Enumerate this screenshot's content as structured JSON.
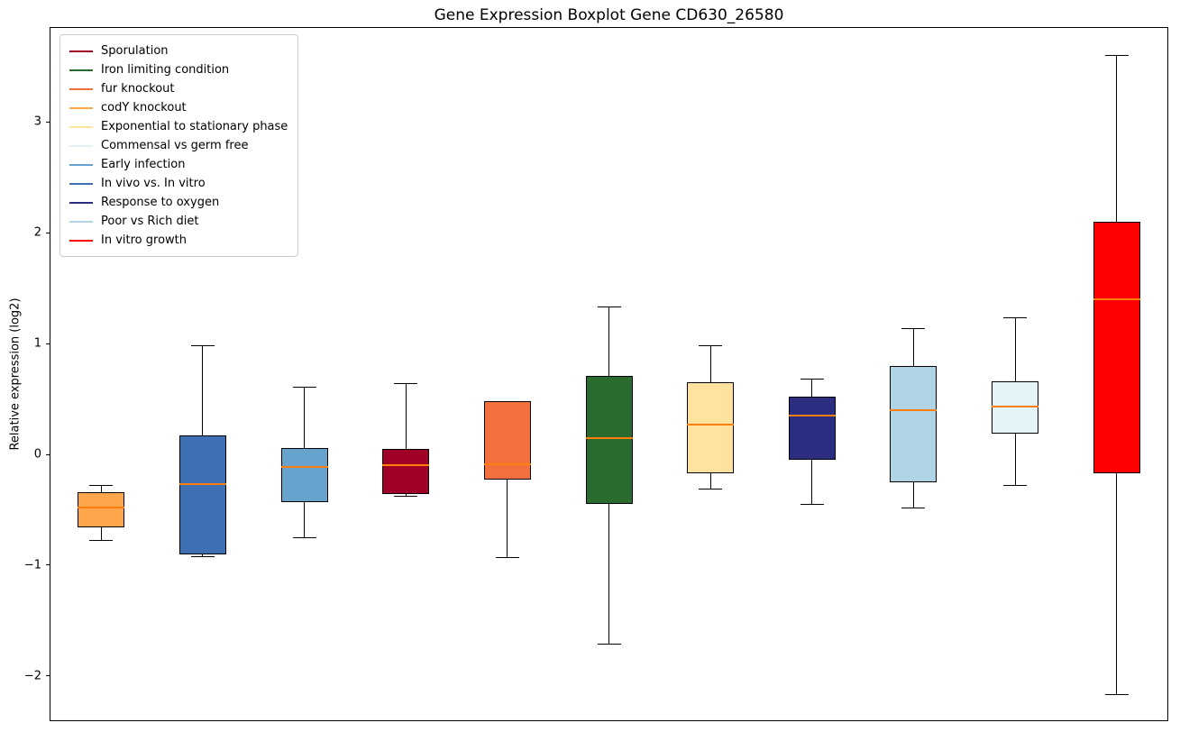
{
  "figure": {
    "title": "Gene Expression Boxplot Gene CD630_26580",
    "ylabel": "Relative expression (log2)"
  },
  "chart_data": {
    "type": "boxplot",
    "title": "Gene Expression Boxplot Gene CD630_26580",
    "xlabel": "",
    "ylabel": "Relative expression (log2)",
    "ylim": [
      -2.4,
      3.85
    ],
    "yticks": [
      -2,
      -1,
      0,
      1,
      2,
      3
    ],
    "grid": false,
    "box_width_frac": 0.46,
    "median_color": "#ff7f0e",
    "box_edge_color": "#000000",
    "whisker_color": "#000000",
    "legend": {
      "position": "upper left",
      "entries": [
        {
          "label": "Sporulation",
          "color": "#a00026"
        },
        {
          "label": "Iron limiting condition",
          "color": "#2c6b2f"
        },
        {
          "label": "fur knockout",
          "color": "#f3703e"
        },
        {
          "label": "codY knockout",
          "color": "#ffa54c"
        },
        {
          "label": "Exponential to stationary phase",
          "color": "#ffe29e"
        },
        {
          "label": "Commensal vs germ free",
          "color": "#e3f4f9"
        },
        {
          "label": "Early infection",
          "color": "#68a3ce"
        },
        {
          "label": "In vivo vs. In vitro",
          "color": "#4070b4"
        },
        {
          "label": "Response to oxygen",
          "color": "#2b2d80"
        },
        {
          "label": "Poor vs Rich diet",
          "color": "#aed4e6"
        },
        {
          "label": "In vitro growth",
          "color": "#ff0000"
        }
      ]
    },
    "series": [
      {
        "name": "codY knockout",
        "color": "#ffa54c",
        "whisker_low": -0.78,
        "q1": -0.66,
        "median": -0.48,
        "q3": -0.34,
        "whisker_high": -0.28
      },
      {
        "name": "In vivo vs. In vitro",
        "color": "#4070b4",
        "whisker_low": -0.92,
        "q1": -0.9,
        "median": -0.27,
        "q3": 0.17,
        "whisker_high": 0.98
      },
      {
        "name": "Early infection",
        "color": "#68a3ce",
        "whisker_low": -0.75,
        "q1": -0.43,
        "median": -0.11,
        "q3": 0.06,
        "whisker_high": 0.61
      },
      {
        "name": "Sporulation",
        "color": "#a00026",
        "whisker_low": -0.38,
        "q1": -0.36,
        "median": -0.1,
        "q3": 0.05,
        "whisker_high": 0.64
      },
      {
        "name": "fur knockout",
        "color": "#f3703e",
        "whisker_low": -0.93,
        "q1": -0.23,
        "median": -0.09,
        "q3": 0.48,
        "whisker_high": 0.48
      },
      {
        "name": "Iron limiting condition",
        "color": "#2c6b2f",
        "whisker_low": -1.71,
        "q1": -0.45,
        "median": 0.15,
        "q3": 0.71,
        "whisker_high": 1.33
      },
      {
        "name": "Exponential to stationary phase",
        "color": "#ffe29e",
        "whisker_low": -0.31,
        "q1": -0.17,
        "median": 0.27,
        "q3": 0.65,
        "whisker_high": 0.98
      },
      {
        "name": "Response to oxygen",
        "color": "#2b2d80",
        "whisker_low": -0.45,
        "q1": -0.05,
        "median": 0.35,
        "q3": 0.52,
        "whisker_high": 0.68
      },
      {
        "name": "Poor vs Rich diet",
        "color": "#aed4e6",
        "whisker_low": -0.48,
        "q1": -0.25,
        "median": 0.4,
        "q3": 0.8,
        "whisker_high": 1.14
      },
      {
        "name": "Commensal vs germ free",
        "color": "#e3f4f9",
        "whisker_low": -0.28,
        "q1": 0.19,
        "median": 0.43,
        "q3": 0.66,
        "whisker_high": 1.23
      },
      {
        "name": "In vitro growth",
        "color": "#ff0000",
        "whisker_low": -2.17,
        "q1": -0.17,
        "median": 1.4,
        "q3": 2.1,
        "whisker_high": 3.6
      }
    ]
  }
}
